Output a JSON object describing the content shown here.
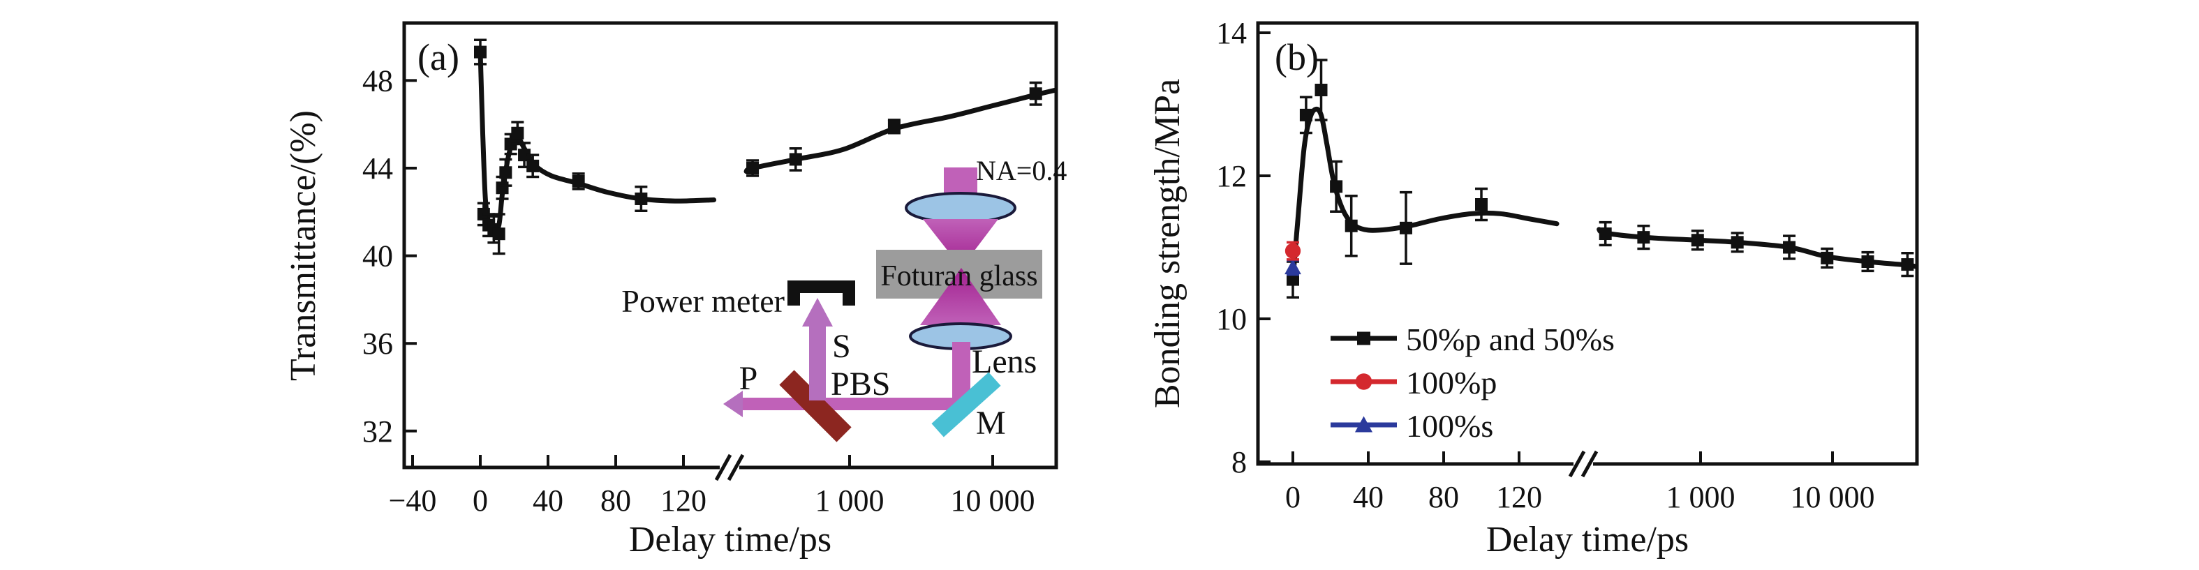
{
  "figure": {
    "background": "#ffffff",
    "axis_color": "#111111"
  },
  "chart_data": [
    {
      "id": "a",
      "type": "line",
      "panel_label": "(a)",
      "title": "",
      "xlabel": "Delay time/ps",
      "ylabel": "Transmittance/(%)",
      "axis_break": true,
      "grid": false,
      "ylim": [
        30.4,
        50.6
      ],
      "x_ticks": [
        {
          "v": -40,
          "label": "−40"
        },
        {
          "v": 0,
          "label": "0"
        },
        {
          "v": 40,
          "label": "40"
        },
        {
          "v": 80,
          "label": "80"
        },
        {
          "v": 120,
          "label": "120"
        },
        {
          "v": 1000,
          "label": "1 000"
        },
        {
          "v": 10000,
          "label": "10 000"
        }
      ],
      "y_ticks": [
        {
          "v": 48,
          "label": "48"
        },
        {
          "v": 44,
          "label": "44"
        },
        {
          "v": 40,
          "label": "40"
        },
        {
          "v": 36,
          "label": "36"
        },
        {
          "v": 32,
          "label": "32"
        }
      ],
      "series": [
        {
          "name": "transmittance",
          "color": "#111111",
          "marker": "square",
          "points": [
            {
              "x": 0,
              "y": 49.3,
              "e": 0.55
            },
            {
              "x": 2,
              "y": 41.9,
              "e": 0.5
            },
            {
              "x": 5,
              "y": 41.4,
              "e": 0.5
            },
            {
              "x": 8,
              "y": 41.2,
              "e": 0.6
            },
            {
              "x": 11,
              "y": 41.0,
              "e": 0.9
            },
            {
              "x": 13,
              "y": 43.1,
              "e": 0.5
            },
            {
              "x": 15,
              "y": 43.8,
              "e": 0.6
            },
            {
              "x": 18,
              "y": 45.1,
              "e": 0.45
            },
            {
              "x": 22,
              "y": 45.6,
              "e": 0.5
            },
            {
              "x": 26,
              "y": 44.6,
              "e": 0.55
            },
            {
              "x": 31,
              "y": 44.1,
              "e": 0.5
            },
            {
              "x": 58,
              "y": 43.4,
              "e": 0.35
            },
            {
              "x": 95,
              "y": 42.6,
              "e": 0.55
            },
            {
              "x": 210,
              "y": 44.0,
              "e": 0.35
            },
            {
              "x": 420,
              "y": 44.4,
              "e": 0.5
            },
            {
              "x": 2050,
              "y": 45.9,
              "e": 0.3
            },
            {
              "x": 20000,
              "y": 47.4,
              "e": 0.5
            }
          ]
        }
      ],
      "fit_curve_pre_break": [
        [
          0,
          49.3
        ],
        [
          1.5,
          45.5
        ],
        [
          3,
          42.6
        ],
        [
          5,
          41.5
        ],
        [
          8,
          41.1
        ],
        [
          11,
          41.4
        ],
        [
          13,
          42.8
        ],
        [
          16,
          44.3
        ],
        [
          19,
          45.2
        ],
        [
          22,
          45.45
        ],
        [
          26,
          44.9
        ],
        [
          32,
          44.15
        ],
        [
          42,
          43.65
        ],
        [
          58,
          43.3
        ],
        [
          75,
          42.9
        ],
        [
          95,
          42.6
        ],
        [
          115,
          42.5
        ],
        [
          138,
          42.55
        ]
      ],
      "fit_curve_post_break": [
        [
          190,
          43.85
        ],
        [
          210,
          44.0
        ],
        [
          420,
          44.4
        ],
        [
          900,
          44.85
        ],
        [
          2050,
          45.8
        ],
        [
          5000,
          46.35
        ],
        [
          10000,
          46.85
        ],
        [
          20000,
          47.35
        ],
        [
          27000,
          47.55
        ]
      ]
    },
    {
      "id": "b",
      "type": "line",
      "panel_label": "(b)",
      "title": "",
      "xlabel": "Delay time/ps",
      "ylabel": "Bonding strength/MPa",
      "axis_break": true,
      "grid": false,
      "ylim": [
        8,
        14.1
      ],
      "legend_position": "inside-left-bottom",
      "x_ticks": [
        {
          "v": 0,
          "label": "0"
        },
        {
          "v": 40,
          "label": "40"
        },
        {
          "v": 80,
          "label": "80"
        },
        {
          "v": 120,
          "label": "120"
        },
        {
          "v": 1000,
          "label": "1 000"
        },
        {
          "v": 10000,
          "label": "10 000"
        }
      ],
      "y_ticks": [
        {
          "v": 14,
          "label": "14"
        },
        {
          "v": 12,
          "label": "12"
        },
        {
          "v": 10,
          "label": "10"
        },
        {
          "v": 8,
          "label": "8"
        }
      ],
      "series": [
        {
          "name": "50%p and 50%s",
          "color": "#111111",
          "marker": "square",
          "points": [
            {
              "x": 0,
              "y": 10.55,
              "e": 0.25
            },
            {
              "x": 7,
              "y": 12.85,
              "e": 0.25
            },
            {
              "x": 15,
              "y": 13.2,
              "e": 0.42
            },
            {
              "x": 23,
              "y": 11.85,
              "e": 0.35
            },
            {
              "x": 31,
              "y": 11.3,
              "e": 0.42
            },
            {
              "x": 60,
              "y": 11.27,
              "e": 0.5
            },
            {
              "x": 100,
              "y": 11.6,
              "e": 0.22
            },
            {
              "x": 190,
              "y": 11.19,
              "e": 0.16
            },
            {
              "x": 370,
              "y": 11.14,
              "e": 0.16
            },
            {
              "x": 950,
              "y": 11.1,
              "e": 0.13
            },
            {
              "x": 1900,
              "y": 11.07,
              "e": 0.13
            },
            {
              "x": 4700,
              "y": 11.0,
              "e": 0.16
            },
            {
              "x": 9100,
              "y": 10.85,
              "e": 0.13
            },
            {
              "x": 18500,
              "y": 10.8,
              "e": 0.13
            },
            {
              "x": 37000,
              "y": 10.76,
              "e": 0.16
            }
          ]
        },
        {
          "name": "100%p",
          "color": "#d4282e",
          "marker": "circle",
          "points": [
            {
              "x": 0,
              "y": 10.95,
              "e": 0.12
            }
          ]
        },
        {
          "name": "100%s",
          "color": "#2b3a9c",
          "marker": "triangle",
          "points": [
            {
              "x": 0,
              "y": 10.72,
              "e": 0.1
            }
          ]
        }
      ],
      "fit_curve_pre_break": [
        [
          0,
          10.55
        ],
        [
          3,
          11.5
        ],
        [
          6,
          12.4
        ],
        [
          9,
          12.8
        ],
        [
          12,
          12.93
        ],
        [
          15,
          12.85
        ],
        [
          18,
          12.45
        ],
        [
          21,
          12.0
        ],
        [
          24,
          11.7
        ],
        [
          28,
          11.45
        ],
        [
          33,
          11.3
        ],
        [
          40,
          11.24
        ],
        [
          50,
          11.25
        ],
        [
          62,
          11.3
        ],
        [
          78,
          11.4
        ],
        [
          95,
          11.47
        ],
        [
          110,
          11.47
        ],
        [
          125,
          11.4
        ],
        [
          140,
          11.33
        ]
      ],
      "fit_curve_post_break": [
        [
          170,
          11.25
        ],
        [
          190,
          11.2
        ],
        [
          370,
          11.14
        ],
        [
          950,
          11.1
        ],
        [
          1900,
          11.07
        ],
        [
          4700,
          11.0
        ],
        [
          9100,
          10.87
        ],
        [
          18500,
          10.8
        ],
        [
          37000,
          10.75
        ],
        [
          43000,
          10.73
        ]
      ]
    }
  ],
  "inset": {
    "labels": {
      "power_meter": "Power meter",
      "s_beam": "S",
      "p_beam": "P",
      "pbs": "PBS",
      "lens": "Lens",
      "mirror": "M",
      "sample": "Foturan glass",
      "na": "NA=0.4"
    },
    "colors": {
      "beam": "#c061b8",
      "arrow": "#b56fbe",
      "cone_deep": "#a1208f",
      "lens": "#9cc4e5",
      "lens_edge": "#1a1a3a",
      "glass": "#9c9c9c",
      "pbs": "#8c2620",
      "mirror": "#49c0d4",
      "power_meter": "#111111"
    }
  }
}
